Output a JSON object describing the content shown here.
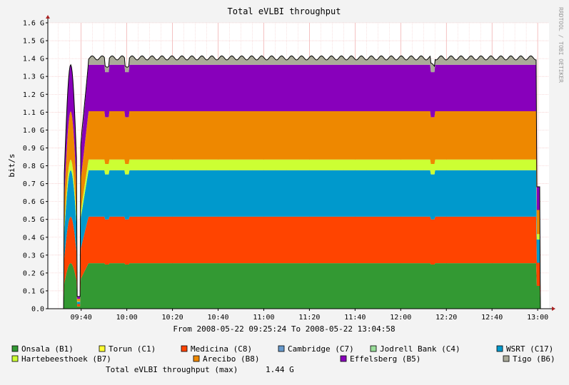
{
  "chart_data": {
    "type": "area",
    "stacked": true,
    "title": "Total eVLBI throughput",
    "ylabel": "bit/s",
    "xlabel": "",
    "ylim": [
      0,
      1.6
    ],
    "y_unit": "G",
    "y_ticks": [
      "0.0",
      "0.1 G",
      "0.2 G",
      "0.3 G",
      "0.4 G",
      "0.5 G",
      "0.6 G",
      "0.7 G",
      "0.8 G",
      "0.9 G",
      "1.0 G",
      "1.1 G",
      "1.2 G",
      "1.3 G",
      "1.4 G",
      "1.5 G",
      "1.6 G"
    ],
    "x_ticks": [
      "09:40",
      "10:00",
      "10:20",
      "10:40",
      "11:00",
      "11:20",
      "11:40",
      "12:00",
      "12:20",
      "12:40",
      "13:00"
    ],
    "x_range": [
      "09:25:24",
      "13:04:58"
    ],
    "grid": true,
    "watermark": "RRDTOOL / TOBI OETIKER",
    "time_range_text": "From 2008-05-22 09:25:24 To 2008-05-22 13:04:58",
    "series": [
      {
        "name": "Onsala (B1)",
        "color": "#339933",
        "steady": 0.255
      },
      {
        "name": "Torun (C1)",
        "color": "#ffff33",
        "steady": 0.0
      },
      {
        "name": "Medicina (C8)",
        "color": "#ff4400",
        "steady": 0.26
      },
      {
        "name": "Cambridge (C7)",
        "color": "#6699cc",
        "steady": 0.0
      },
      {
        "name": "Jodrell Bank (C4)",
        "color": "#99dd99",
        "steady": 0.0
      },
      {
        "name": "WSRT (C17)",
        "color": "#0099cc",
        "steady": 0.26
      },
      {
        "name": "Hartebeesthoek (B7)",
        "color": "#ccff33",
        "steady": 0.06
      },
      {
        "name": "Arecibo (B8)",
        "color": "#ee8800",
        "steady": 0.27
      },
      {
        "name": "Effelsberg (B5)",
        "color": "#8800bb",
        "steady": 0.26
      },
      {
        "name": "Tigo (B6)",
        "color": "#aaaa99",
        "steady": 0.05
      }
    ],
    "summary": {
      "label": "Total eVLBI throughput (max)",
      "value": "1.44 G"
    }
  }
}
